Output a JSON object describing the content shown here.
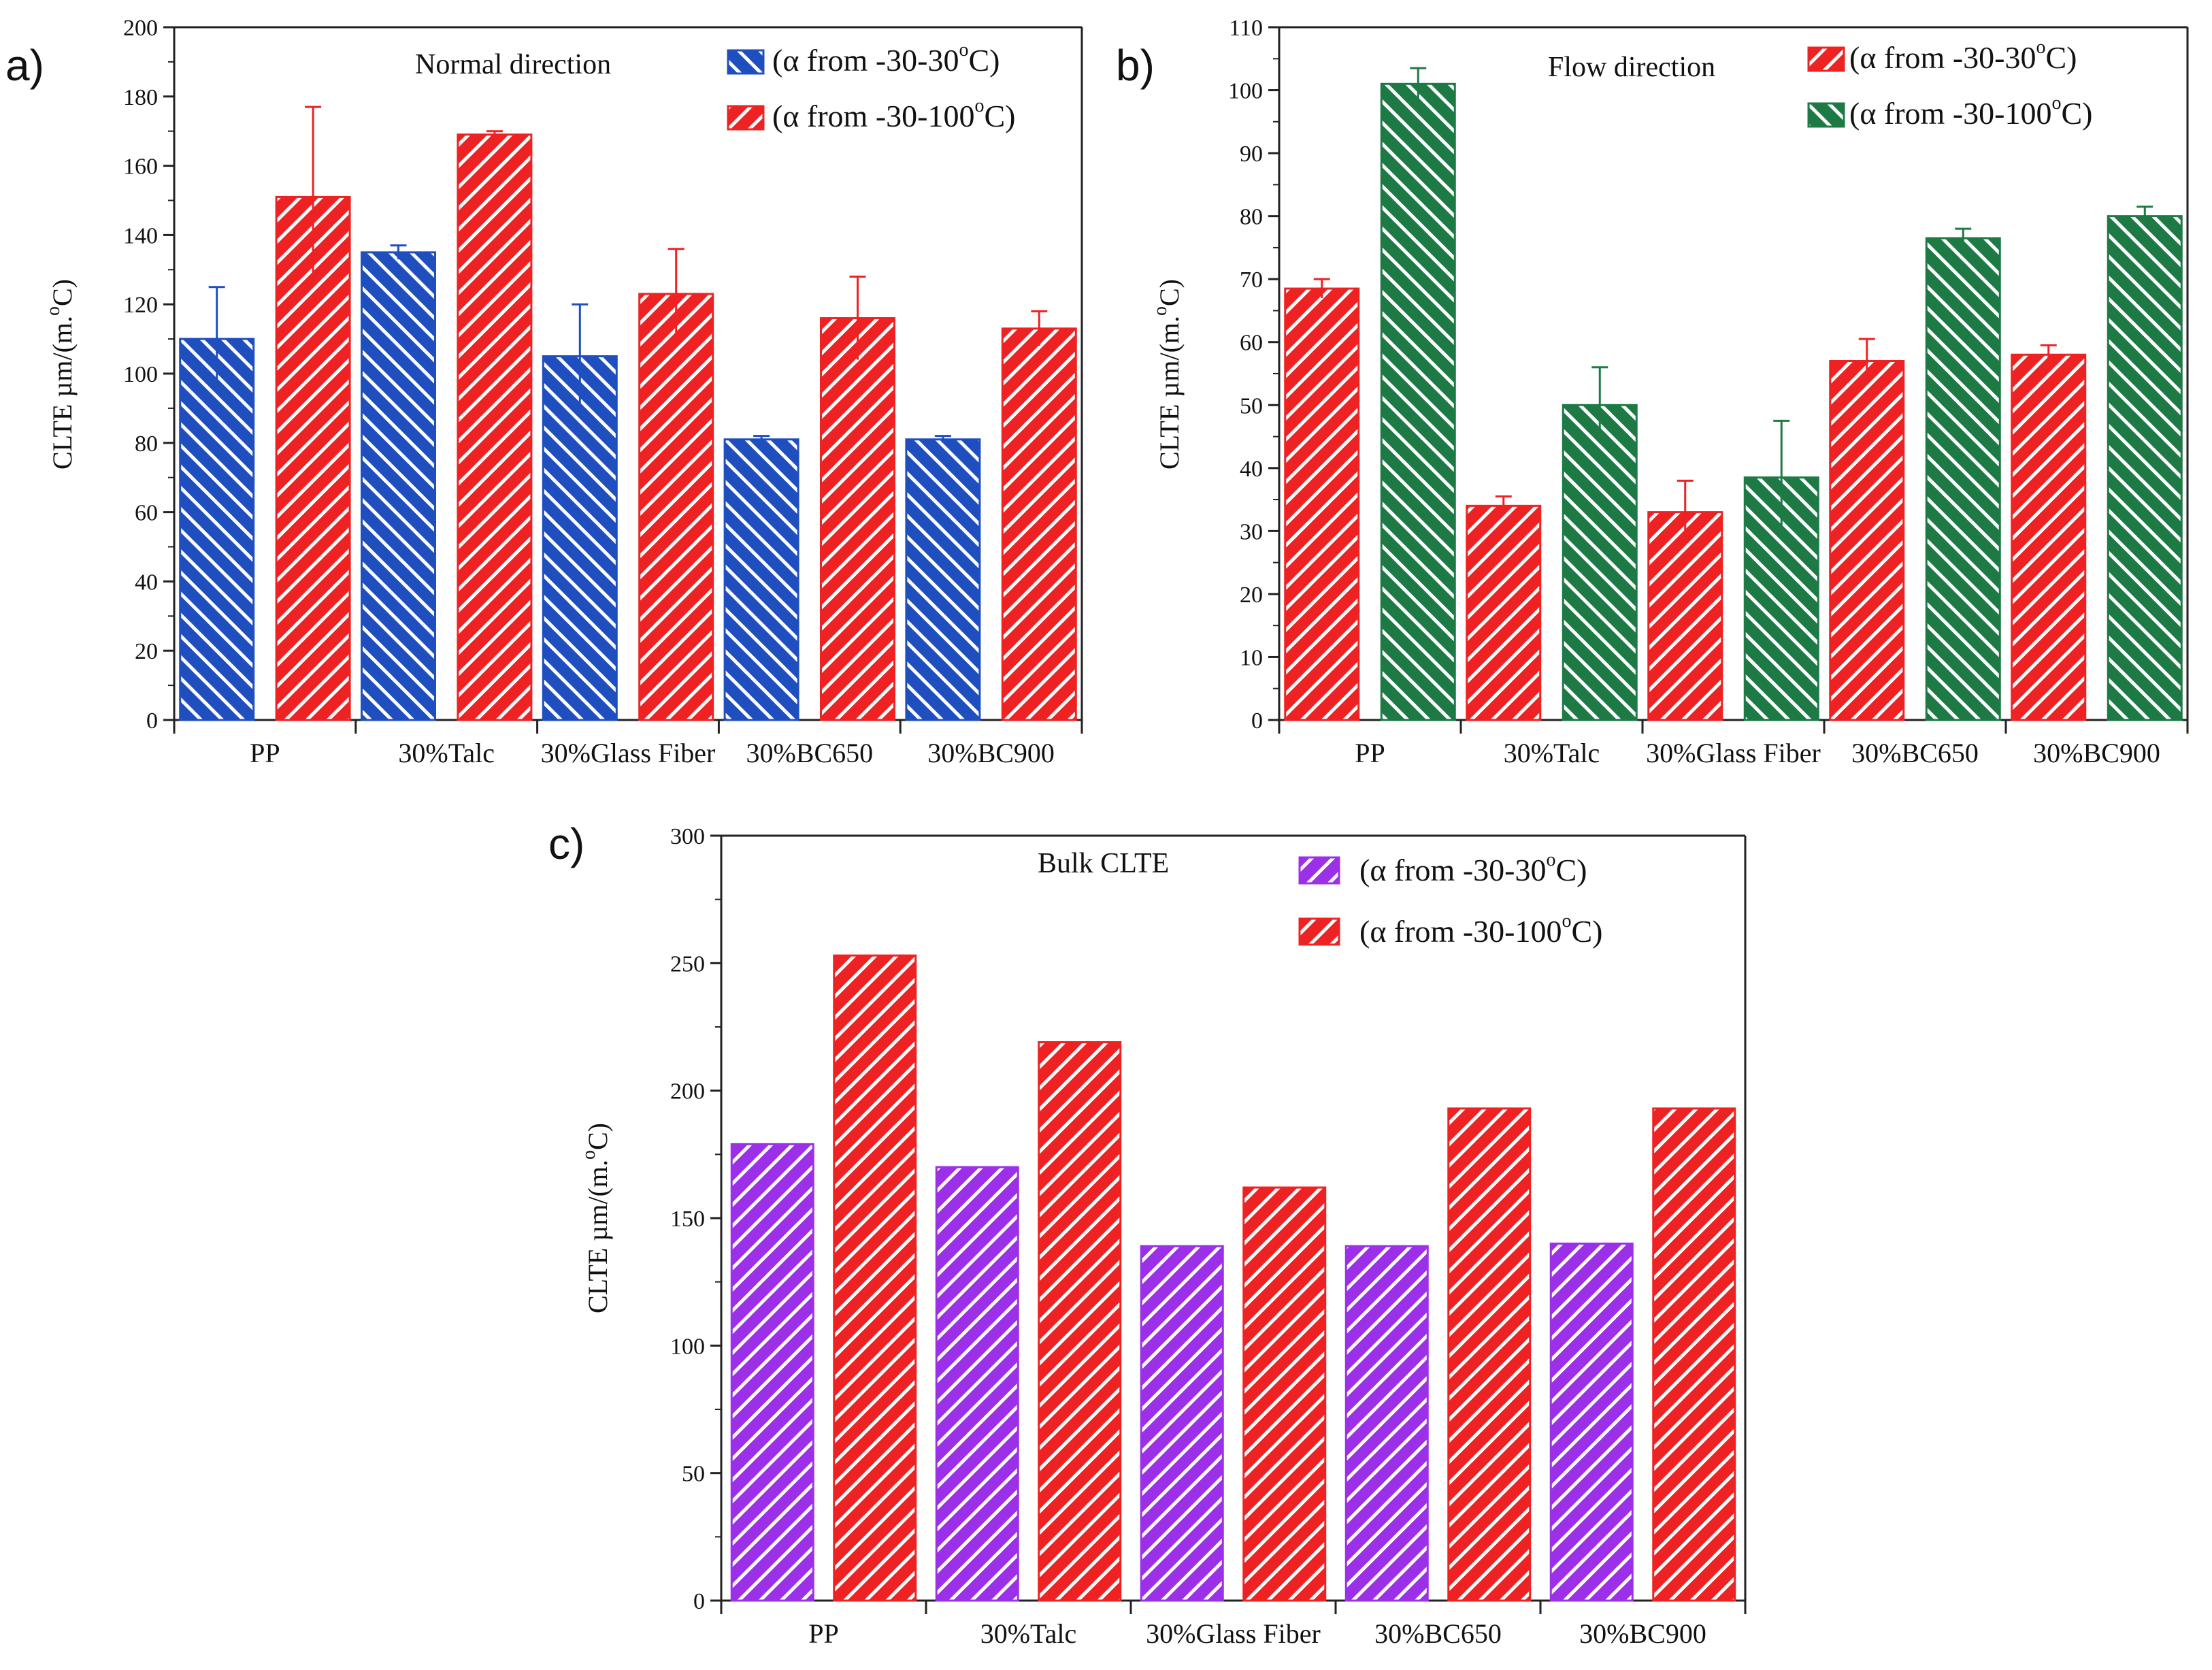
{
  "figure_labels": {
    "a": "a)",
    "b": "b)",
    "c": "c)"
  },
  "chart_data": [
    {
      "id": "a",
      "type": "bar",
      "title": "Normal direction",
      "xlabel": "",
      "ylabel": "CLTE µm/(m.°C)",
      "ylim": [
        0,
        200
      ],
      "yticks": [
        0,
        20,
        40,
        60,
        80,
        100,
        120,
        140,
        160,
        180,
        200
      ],
      "categories": [
        "PP",
        "30%Talc",
        "30%Glass Fiber",
        "30%BC650",
        "30%BC900"
      ],
      "series": [
        {
          "name": "(α from -30-30°C)",
          "color": "#1F4FBF",
          "hatch": "backslash",
          "values": [
            110,
            135,
            105,
            81,
            81
          ],
          "errors": [
            15,
            2,
            15,
            1,
            1
          ]
        },
        {
          "name": "(α from -30-100°C)",
          "color": "#EE2222",
          "hatch": "slash",
          "values": [
            151,
            169,
            123,
            116,
            113
          ],
          "errors": [
            26,
            1,
            13,
            12,
            5
          ]
        }
      ],
      "legend": {
        "position": "top-right",
        "items": [
          {
            "prefix": "(α from -30-30",
            "sup": "o",
            "suffix": "C)"
          },
          {
            "prefix": "(α from -30-100",
            "sup": "o",
            "suffix": "C)"
          }
        ]
      }
    },
    {
      "id": "b",
      "type": "bar",
      "title": "Flow direction",
      "xlabel": "",
      "ylabel": "CLTE µm/(m.°C)",
      "ylim": [
        0,
        110
      ],
      "yticks": [
        0,
        10,
        20,
        30,
        40,
        50,
        60,
        70,
        80,
        90,
        100,
        110
      ],
      "categories": [
        "PP",
        "30%Talc",
        "30%Glass Fiber",
        "30%BC650",
        "30%BC900"
      ],
      "series": [
        {
          "name": "(α from -30-30°C)",
          "color": "#EE2222",
          "hatch": "slash",
          "values": [
            68.5,
            34,
            33,
            57,
            58
          ],
          "errors": [
            1.5,
            1.5,
            5,
            3.5,
            1.5
          ]
        },
        {
          "name": "(α from -30-100°C)",
          "color": "#1E7A45",
          "hatch": "backslash",
          "values": [
            101,
            50,
            38.5,
            76.5,
            80
          ],
          "errors": [
            2.5,
            6,
            9,
            1.5,
            1.5
          ]
        }
      ],
      "legend": {
        "position": "top-right",
        "items": [
          {
            "prefix": "(α from -30-30",
            "sup": "o",
            "suffix": "C)"
          },
          {
            "prefix": "(α from -30-100",
            "sup": "o",
            "suffix": "C)"
          }
        ]
      }
    },
    {
      "id": "c",
      "type": "bar",
      "title": "Bulk CLTE",
      "xlabel": "",
      "ylabel": "CLTE µm/(m.°C)",
      "ylim": [
        0,
        300
      ],
      "yticks": [
        0,
        50,
        100,
        150,
        200,
        250,
        300
      ],
      "categories": [
        "PP",
        "30%Talc",
        "30%Glass Fiber",
        "30%BC650",
        "30%BC900"
      ],
      "series": [
        {
          "name": "(α from -30-30°C)",
          "color": "#9B30E8",
          "hatch": "slash",
          "values": [
            179,
            170,
            139,
            139,
            140
          ]
        },
        {
          "name": "(α from -30-100°C)",
          "color": "#EE2222",
          "hatch": "slash",
          "values": [
            253,
            219,
            162,
            193,
            193
          ]
        }
      ],
      "legend": {
        "position": "top-right",
        "items": [
          {
            "prefix": "(α from -30-30",
            "sup": "o",
            "suffix": "C)"
          },
          {
            "prefix": "(α from -30-100",
            "sup": "o",
            "suffix": "C)"
          }
        ]
      }
    }
  ]
}
